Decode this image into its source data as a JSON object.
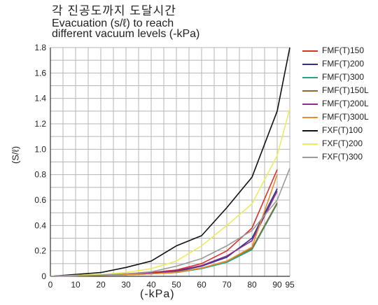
{
  "chart_data": {
    "type": "line",
    "title_ko": "각 진공도까지 도달시간",
    "title_en_line1": "Evacuation (s/ℓ) to reach",
    "title_en_line2": "different vacuum levels (-kPa)",
    "xlabel": "(-kPa)",
    "ylabel": "(S/ℓ)",
    "xlim": [
      0,
      95
    ],
    "ylim": [
      0,
      1.8
    ],
    "xticks": [
      0,
      10,
      20,
      30,
      40,
      50,
      60,
      70,
      80,
      90,
      95
    ],
    "yticks": [
      0,
      0.2,
      0.4,
      0.6,
      0.8,
      1.0,
      1.2,
      1.4,
      1.6,
      1.8
    ],
    "ytick_labels": [
      "0",
      "0.2",
      "0.4",
      "0.6",
      "0.8",
      "1.0",
      "1.2",
      "1.4",
      "1.6",
      "1.8"
    ],
    "grid": true,
    "legend_position": "right",
    "series": [
      {
        "name": "FMF(T)150",
        "color": "#d9312b",
        "x": [
          0,
          10,
          20,
          30,
          40,
          50,
          60,
          70,
          80,
          90
        ],
        "y": [
          0,
          0.005,
          0.01,
          0.02,
          0.03,
          0.05,
          0.1,
          0.2,
          0.38,
          0.84
        ]
      },
      {
        "name": "FMF(T)200",
        "color": "#2c2f8f",
        "x": [
          0,
          10,
          20,
          30,
          40,
          50,
          60,
          70,
          80,
          90
        ],
        "y": [
          0,
          0.005,
          0.01,
          0.015,
          0.025,
          0.04,
          0.08,
          0.15,
          0.3,
          0.69
        ]
      },
      {
        "name": "FMF(T)300",
        "color": "#1fa489",
        "x": [
          0,
          10,
          20,
          30,
          40,
          50,
          60,
          70,
          80,
          90
        ],
        "y": [
          0,
          0.004,
          0.008,
          0.012,
          0.02,
          0.03,
          0.06,
          0.11,
          0.21,
          0.57
        ]
      },
      {
        "name": "FMF(T)150L",
        "color": "#8b6a2e",
        "x": [
          0,
          10,
          20,
          30,
          40,
          50,
          60,
          70,
          80,
          90
        ],
        "y": [
          0,
          0.004,
          0.008,
          0.012,
          0.02,
          0.035,
          0.065,
          0.12,
          0.22,
          0.58
        ]
      },
      {
        "name": "FMF(T)200L",
        "color": "#8e2a8a",
        "x": [
          0,
          10,
          20,
          30,
          40,
          50,
          60,
          70,
          80,
          90
        ],
        "y": [
          0,
          0.005,
          0.01,
          0.015,
          0.025,
          0.045,
          0.085,
          0.16,
          0.28,
          0.67
        ]
      },
      {
        "name": "FMF(T)300L",
        "color": "#ee8c2a",
        "x": [
          0,
          10,
          20,
          30,
          40,
          50,
          60,
          70,
          80,
          90
        ],
        "y": [
          0,
          0.004,
          0.008,
          0.012,
          0.02,
          0.03,
          0.065,
          0.12,
          0.23,
          0.8
        ]
      },
      {
        "name": "FXF(T)100",
        "color": "#111111",
        "x": [
          0,
          10,
          20,
          30,
          40,
          50,
          60,
          70,
          80,
          90,
          95
        ],
        "y": [
          0,
          0.015,
          0.03,
          0.07,
          0.12,
          0.24,
          0.32,
          0.54,
          0.78,
          1.3,
          1.8
        ]
      },
      {
        "name": "FXF(T)200",
        "color": "#ecec5c",
        "x": [
          0,
          10,
          20,
          30,
          40,
          50,
          60,
          70,
          80,
          90,
          95
        ],
        "y": [
          0,
          0.008,
          0.015,
          0.03,
          0.06,
          0.12,
          0.24,
          0.4,
          0.57,
          0.95,
          1.32
        ]
      },
      {
        "name": "FXF(T)300",
        "color": "#9a9a9a",
        "x": [
          0,
          10,
          20,
          30,
          40,
          50,
          60,
          70,
          80,
          90,
          95
        ],
        "y": [
          0,
          0.005,
          0.01,
          0.02,
          0.035,
          0.08,
          0.14,
          0.24,
          0.36,
          0.6,
          0.85
        ]
      }
    ]
  }
}
